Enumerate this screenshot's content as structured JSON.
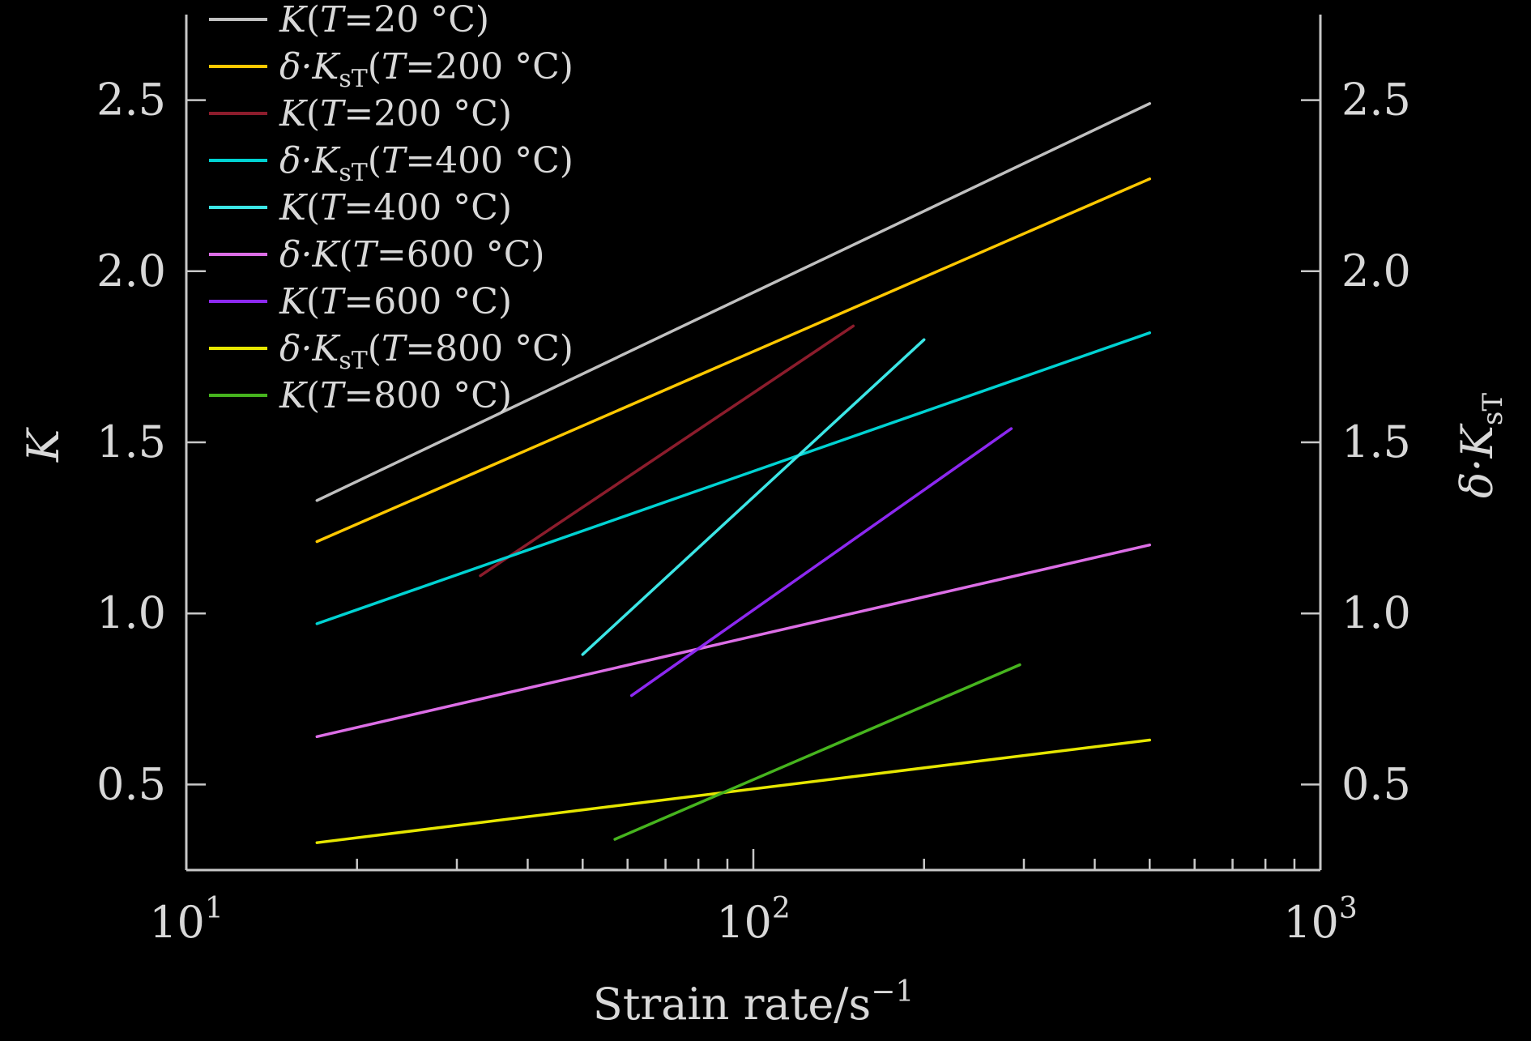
{
  "chart_data": {
    "type": "line",
    "xscale": "log",
    "xlim": [
      10,
      1000
    ],
    "ylim": [
      0.25,
      2.75
    ],
    "grid": false,
    "legend_position": "top-left",
    "xlabel": "Strain rate/s",
    "xlabel_superscript": "−1",
    "ylabel_left": "K",
    "ylabel_right": {
      "main": "δ·K",
      "sub": "sT"
    },
    "x_ticks": [
      {
        "value": 10,
        "base": "10",
        "exp": "1"
      },
      {
        "value": 100,
        "base": "10",
        "exp": "2"
      },
      {
        "value": 1000,
        "base": "10",
        "exp": "3"
      }
    ],
    "y_ticks": [
      {
        "value": 0.5,
        "label": "0.5"
      },
      {
        "value": 1.0,
        "label": "1.0"
      },
      {
        "value": 1.5,
        "label": "1.5"
      },
      {
        "value": 2.0,
        "label": "2.0"
      },
      {
        "value": 2.5,
        "label": "2.5"
      }
    ],
    "series": [
      {
        "legend": {
          "a": "K",
          "b": "(",
          "c": "T",
          "d": "=20 °C)"
        },
        "color": "#c0c0c0",
        "x": [
          17,
          500
        ],
        "y": [
          1.33,
          2.49
        ]
      },
      {
        "legend": {
          "a": "δ·K",
          "s": "sT",
          "b": "(",
          "c": "T",
          "d": "=200 °C)"
        },
        "color": "#ffc800",
        "x": [
          17,
          500
        ],
        "y": [
          1.21,
          2.27
        ]
      },
      {
        "legend": {
          "a": "K",
          "b": "(",
          "c": "T",
          "d": "=200 °C)"
        },
        "color": "#8c1c2c",
        "x": [
          33,
          150
        ],
        "y": [
          1.11,
          1.84
        ]
      },
      {
        "legend": {
          "a": "δ·K",
          "s": "sT",
          "b": "(",
          "c": "T",
          "d": "=400 °C)"
        },
        "color": "#00d2d2",
        "x": [
          17,
          500
        ],
        "y": [
          0.97,
          1.82
        ]
      },
      {
        "legend": {
          "a": "K",
          "b": "(",
          "c": "T",
          "d": "=400 °C)"
        },
        "color": "#3ce6e6",
        "x": [
          50,
          200
        ],
        "y": [
          0.88,
          1.8
        ]
      },
      {
        "legend": {
          "a": "δ·K",
          "b": "(",
          "c": "T",
          "d": "=600 °C)"
        },
        "color": "#dc6ee6",
        "x": [
          17,
          500
        ],
        "y": [
          0.64,
          1.2
        ]
      },
      {
        "legend": {
          "a": "K",
          "b": "(",
          "c": "T",
          "d": "=600 °C)"
        },
        "color": "#8c28f0",
        "x": [
          61,
          285
        ],
        "y": [
          0.76,
          1.54
        ]
      },
      {
        "legend": {
          "a": "δ·K",
          "s": "sT",
          "b": "(",
          "c": "T",
          "d": "=800 °C)"
        },
        "color": "#e6e600",
        "x": [
          17,
          500
        ],
        "y": [
          0.33,
          0.63
        ]
      },
      {
        "legend": {
          "a": "K",
          "b": "(",
          "c": "T",
          "d": "=800 °C)"
        },
        "color": "#46b41e",
        "x": [
          57,
          295
        ],
        "y": [
          0.34,
          0.85
        ]
      }
    ]
  }
}
